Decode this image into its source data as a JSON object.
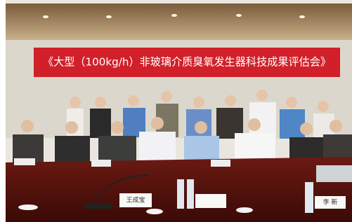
{
  "banner": {
    "title": "《大型（100kg/h）非玻璃介质臭氧发生器科技成果评估会》"
  },
  "name_cards": [
    "王成宝",
    "李 新"
  ]
}
